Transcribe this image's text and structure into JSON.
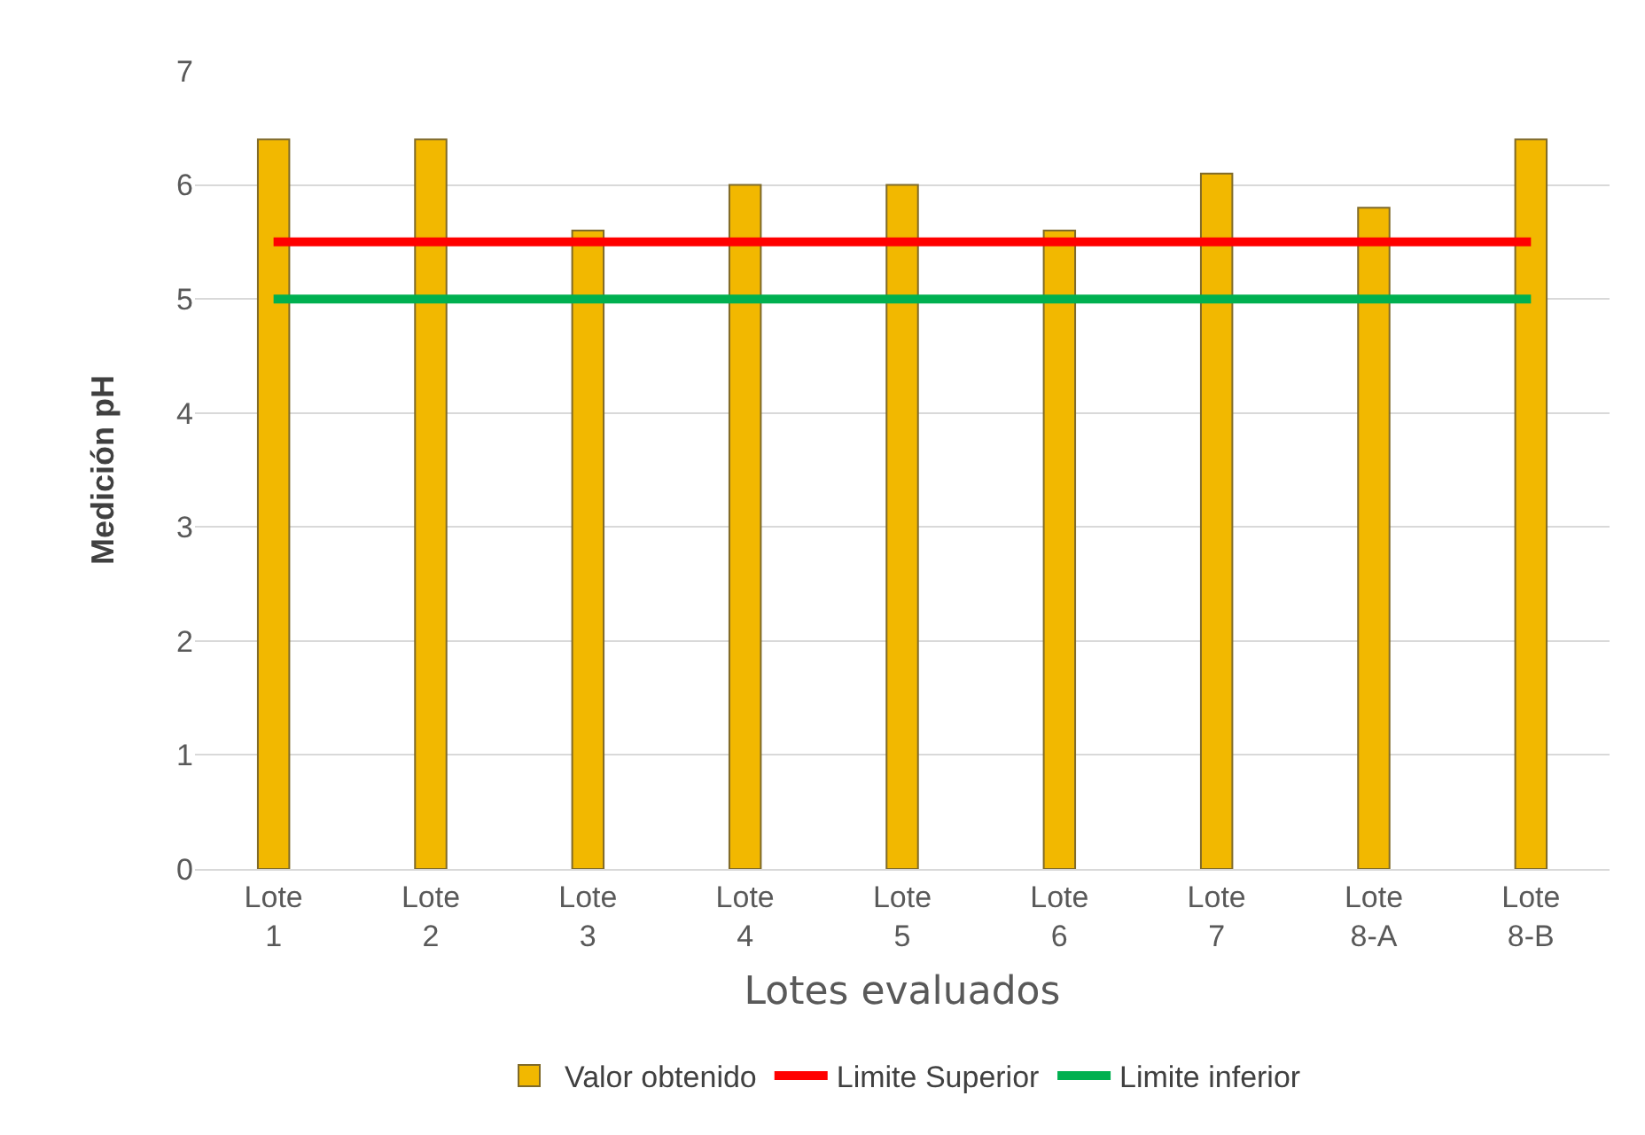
{
  "chart_data": {
    "type": "bar",
    "xlabel": "Lotes evaluados",
    "ylabel": "Medición pH",
    "categories": [
      "Lote 1",
      "Lote 2",
      "Lote 3",
      "Lote 4",
      "Lote 5",
      "Lote 6",
      "Lote 7",
      "Lote 8-A",
      "Lote 8-B"
    ],
    "series": [
      {
        "name": "Valor obtenido",
        "color": "#f2b800",
        "values": [
          6.4,
          6.4,
          5.6,
          6.0,
          6.0,
          5.6,
          6.1,
          5.8,
          6.4
        ]
      },
      {
        "name": "Limite Superior",
        "type": "line",
        "color": "#ff0000",
        "values": [
          5.5,
          5.5,
          5.5,
          5.5,
          5.5,
          5.5,
          5.5,
          5.5,
          5.5
        ]
      },
      {
        "name": "Limite inferior",
        "type": "line",
        "color": "#00b050",
        "values": [
          5,
          5,
          5,
          5,
          5,
          5,
          5,
          5,
          5
        ]
      }
    ],
    "ylim": [
      0,
      7
    ],
    "yticks": [
      0,
      1,
      2,
      3,
      4,
      5,
      6,
      7
    ],
    "grid": "y",
    "legend": "bottom",
    "line_style": "solid",
    "marker": "none"
  }
}
